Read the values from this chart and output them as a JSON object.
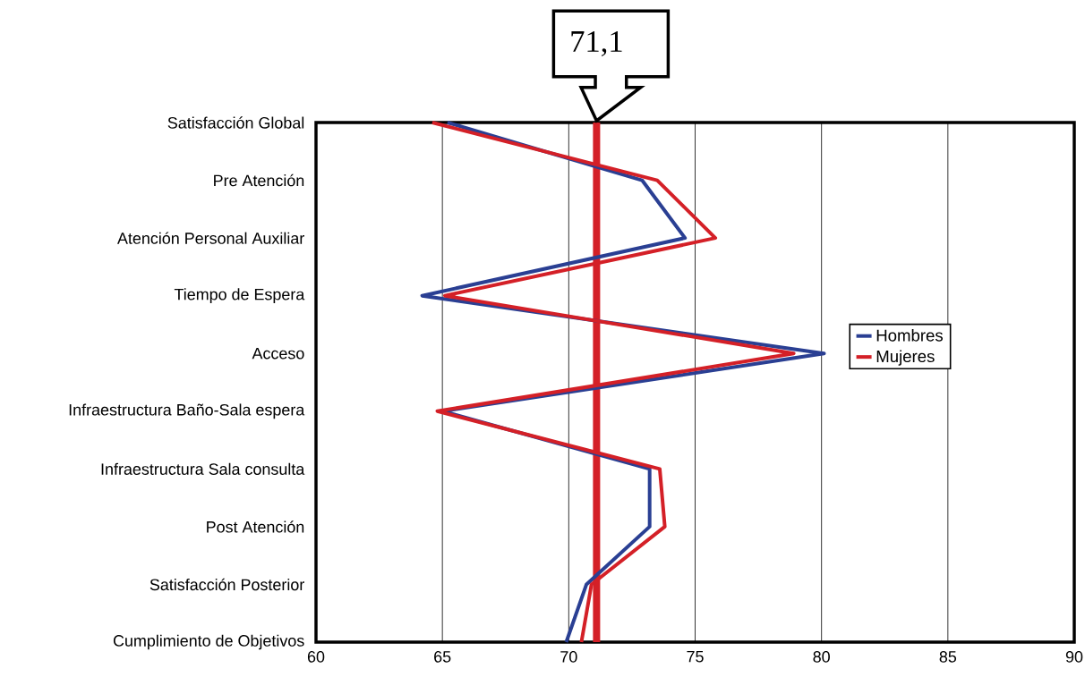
{
  "chart_data": {
    "type": "line",
    "orientation": "horizontal",
    "categories": [
      "Satisfacción Global",
      "Pre Atención",
      "Atención Personal Auxiliar",
      "Tiempo de Espera",
      "Acceso",
      "Infraestructura Baño-Sala espera",
      "Infraestructura Sala consulta",
      "Post Atención",
      "Satisfacción Posterior",
      "Cumplimiento de Objetivos"
    ],
    "series": [
      {
        "name": "Hombres",
        "color": "#2a3f93",
        "values": [
          65.2,
          72.9,
          74.6,
          64.2,
          80.1,
          65.0,
          73.2,
          73.2,
          70.7,
          69.9
        ]
      },
      {
        "name": "Mujeres",
        "color": "#d42027",
        "values": [
          64.6,
          73.5,
          75.8,
          65.1,
          78.9,
          64.8,
          73.6,
          73.8,
          70.9,
          70.5
        ]
      }
    ],
    "xlim": [
      60,
      90
    ],
    "xticks": [
      60,
      65,
      70,
      75,
      80,
      85,
      90
    ],
    "ref_lines": [
      {
        "axis": "x",
        "value": 71.1,
        "label": "71,1",
        "color": "#d42027"
      }
    ],
    "grid": "x",
    "legend": "right",
    "marker": "none",
    "line_style": "solid"
  }
}
